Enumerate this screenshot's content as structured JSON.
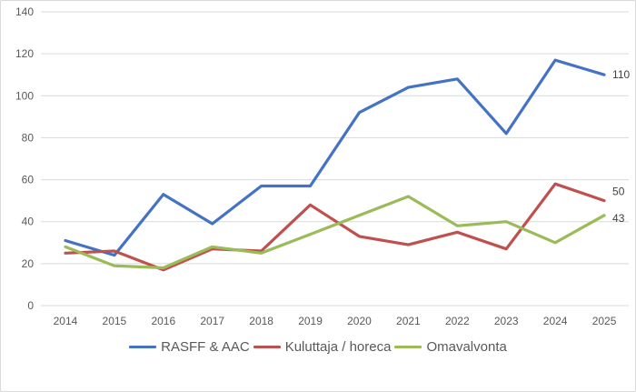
{
  "canvas": {
    "background": "#FFFFFF",
    "border_color": "#D9D9D9",
    "tick_text_color": "#595959",
    "gridline_color": "#D9D9D9",
    "data_label_color": "#404040"
  },
  "chart_data": {
    "type": "line",
    "title": "",
    "xlabel": "",
    "ylabel": "",
    "x": [
      "2014",
      "2015",
      "2016",
      "2017",
      "2018",
      "2019",
      "2020",
      "2021",
      "2022",
      "2023",
      "2024",
      "2025"
    ],
    "series": [
      {
        "name": "RASFF & AAC",
        "color": "#4472C4",
        "values": [
          31,
          24,
          53,
          39,
          57,
          57,
          92,
          104,
          108,
          82,
          117,
          110
        ],
        "end_label": "110"
      },
      {
        "name": "Kuluttaja / horeca",
        "color": "#C0504D",
        "values": [
          25,
          26,
          17,
          27,
          26,
          48,
          33,
          29,
          35,
          27,
          58,
          50
        ],
        "end_label": "50"
      },
      {
        "name": "Omavalvonta",
        "color": "#9BBB59",
        "values": [
          28,
          19,
          18,
          28,
          25,
          34,
          43,
          52,
          38,
          40,
          30,
          43
        ],
        "end_label": "43"
      }
    ],
    "y_axis": {
      "min": 0,
      "max": 140,
      "step": 20,
      "tick_labels": [
        "0",
        "20",
        "40",
        "60",
        "80",
        "100",
        "120",
        "140"
      ]
    },
    "grid": true,
    "legend_position": "bottom"
  }
}
